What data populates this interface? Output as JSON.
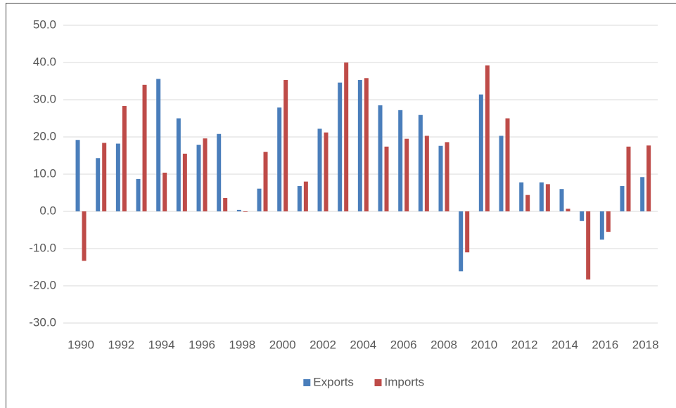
{
  "chart_data": {
    "type": "bar",
    "categories": [
      "1990",
      null,
      "1992",
      null,
      "1994",
      null,
      "1996",
      null,
      "1998",
      null,
      "2000",
      null,
      "2002",
      null,
      "2004",
      null,
      "2006",
      null,
      "2008",
      null,
      "2010",
      null,
      "2012",
      null,
      "2014",
      null,
      "2016",
      null,
      "2018"
    ],
    "series": [
      {
        "name": "Exports",
        "color": "#4a7ebb",
        "values": [
          19.2,
          14.3,
          18.2,
          8.7,
          35.6,
          25.0,
          17.9,
          20.8,
          0.4,
          6.1,
          27.9,
          6.8,
          22.2,
          34.6,
          35.3,
          28.5,
          27.2,
          25.9,
          17.6,
          -16.1,
          31.4,
          20.3,
          7.8,
          7.8,
          6.0,
          -2.6,
          -7.6,
          6.8,
          9.2
        ]
      },
      {
        "name": "Imports",
        "color": "#be4b48",
        "values": [
          -13.3,
          18.4,
          28.3,
          34.0,
          10.4,
          15.5,
          19.6,
          3.6,
          0.0,
          16.0,
          35.3,
          8.0,
          21.2,
          40.0,
          35.8,
          17.4,
          19.5,
          20.3,
          18.6,
          -11.0,
          39.2,
          25.0,
          4.4,
          7.3,
          0.7,
          -18.3,
          -5.5,
          17.4,
          17.7
        ]
      }
    ],
    "ylim": [
      -30,
      50
    ],
    "yticks": [
      {
        "value": -30,
        "label": "-30.0"
      },
      {
        "value": -20,
        "label": "-20.0"
      },
      {
        "value": -10,
        "label": "-10.0"
      },
      {
        "value": 0,
        "label": "0.0"
      },
      {
        "value": 10,
        "label": "10.0"
      },
      {
        "value": 20,
        "label": "20.0"
      },
      {
        "value": 30,
        "label": "30.0"
      },
      {
        "value": 40,
        "label": "40.0"
      },
      {
        "value": 50,
        "label": "50.0"
      }
    ],
    "grid": true,
    "legend": "bottom"
  }
}
